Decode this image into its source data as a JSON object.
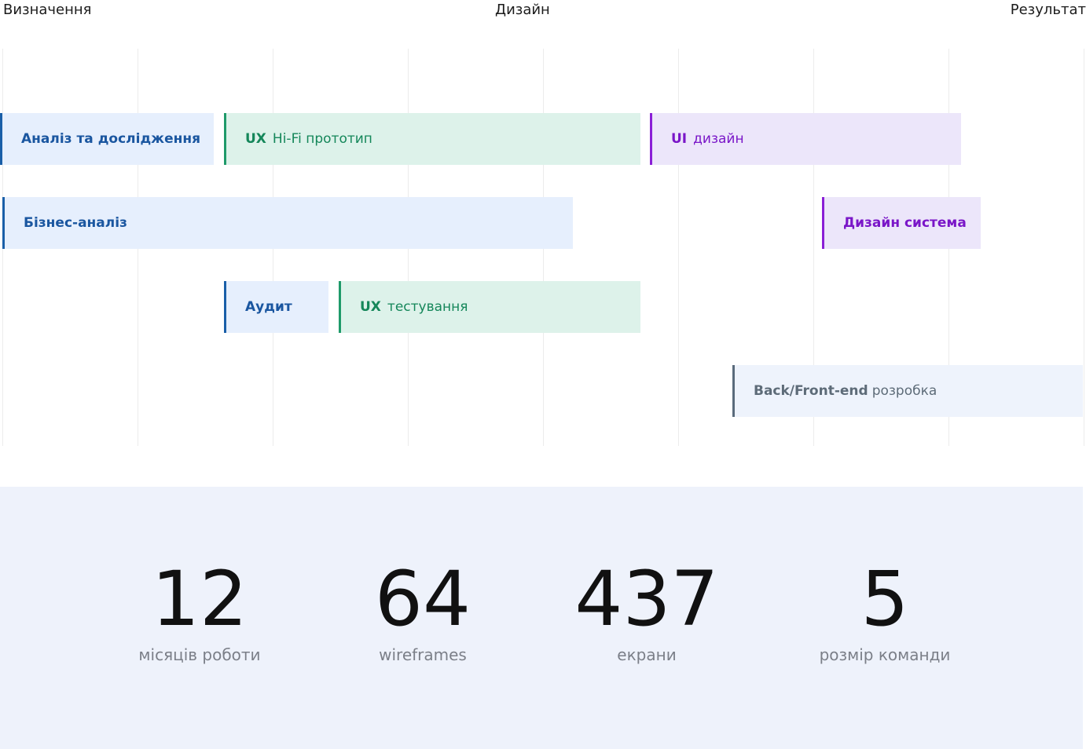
{
  "phases": [
    "Визначення",
    "Дизайн",
    "Результат"
  ],
  "tasks": [
    {
      "strong": "Аналіз та дослідження"
    },
    {
      "strong": "UX",
      "text": "Hi-Fi прототип"
    },
    {
      "strong": "UI",
      "text": "дизайн"
    },
    {
      "strong": "Бізнес-аналіз"
    },
    {
      "strong": "Дизайн система"
    },
    {
      "strong": "Аудит"
    },
    {
      "strong": "UX",
      "text": "тестування"
    },
    {
      "strong": "Back/Front-end",
      "text": "розробка"
    }
  ],
  "stats": [
    {
      "value": 12,
      "label": "місяців роботи"
    },
    {
      "value": 64,
      "label": "wireframes"
    },
    {
      "value": 437,
      "label": "екрани"
    },
    {
      "value": 5,
      "label": "розмір команди"
    }
  ]
}
